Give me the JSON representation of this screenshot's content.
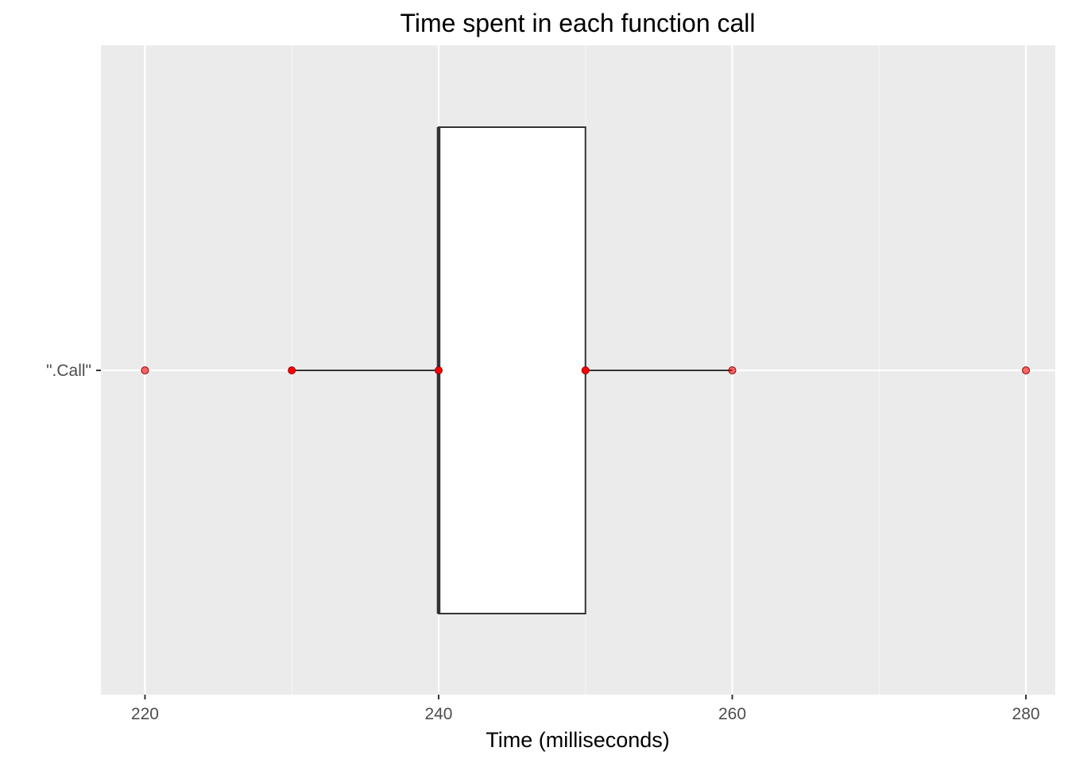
{
  "chart_data": {
    "type": "boxplot",
    "title": "Time spent in each function call",
    "xlabel": "Time (milliseconds)",
    "ylabel": "",
    "xlim": [
      217,
      282
    ],
    "x_ticks": [
      220,
      240,
      260,
      280
    ],
    "x_tick_labels": [
      "220",
      "240",
      "260",
      "280"
    ],
    "categories": [
      "\".Call\""
    ],
    "box": {
      "category": "\".Call\"",
      "whisker_low": 230,
      "q1": 240,
      "median": 240,
      "q3": 250,
      "whisker_high": 260
    },
    "points": [
      {
        "x": 220,
        "category": "\".Call\""
      },
      {
        "x": 230,
        "category": "\".Call\""
      },
      {
        "x": 240,
        "category": "\".Call\""
      },
      {
        "x": 250,
        "category": "\".Call\""
      },
      {
        "x": 260,
        "category": "\".Call\""
      },
      {
        "x": 280,
        "category": "\".Call\""
      }
    ],
    "grid": true,
    "legend": "none",
    "colors": {
      "panel_background": "#ebebeb",
      "grid_major": "#ffffff",
      "grid_minor": "#f5f5f5",
      "box_fill": "#ffffff",
      "box_line": "#333333",
      "point_fill": "#ff0000",
      "point_stroke": "#8b0000",
      "tick_text": "#4d4d4d"
    }
  }
}
